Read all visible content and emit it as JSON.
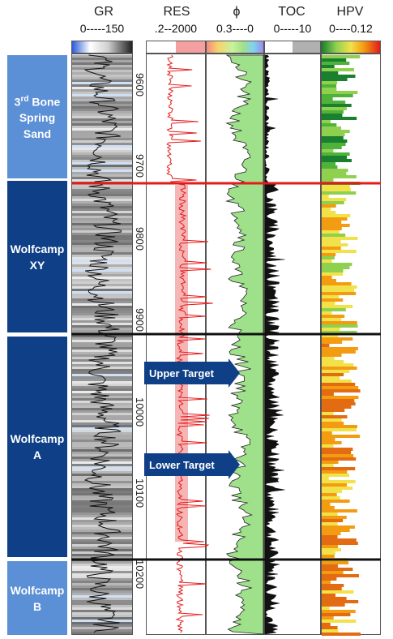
{
  "tracks": {
    "gr": {
      "name": "GR",
      "scale": "0-----150"
    },
    "res": {
      "name": "RES",
      "scale": ".2--2000"
    },
    "phi": {
      "name": "ϕ",
      "scale": "0.3----0"
    },
    "toc": {
      "name": "TOC",
      "scale": "0-----10"
    },
    "hpv": {
      "name": "HPV",
      "scale": "0----0.12"
    }
  },
  "zones": [
    {
      "label": "3rd Bone Spring Sand",
      "color": "#5b8fd6"
    },
    {
      "label": "Wolfcamp XY",
      "color": "#0f3f86"
    },
    {
      "label": "Wolfcamp A",
      "color": "#0f3f86"
    },
    {
      "label": "Wolfcamp B",
      "color": "#5b8fd6"
    }
  ],
  "zone_sup": "rd",
  "depth_ticks": [
    "9600",
    "9700",
    "9800",
    "9900",
    "10000",
    "10100",
    "10200"
  ],
  "targets": [
    {
      "label": "Upper Target",
      "color": "#0f3f86"
    },
    {
      "label": "Lower Target",
      "color": "#0f3f86"
    }
  ],
  "boundaries": {
    "red": "#e31b1b",
    "black": "#111111"
  },
  "colors": {
    "gr_curve": "#111111",
    "res_curve": "#e31b1b",
    "phi_fill": "#9fe08a",
    "toc_fill": "#111111",
    "hpv_fill": "#f39c12"
  }
}
